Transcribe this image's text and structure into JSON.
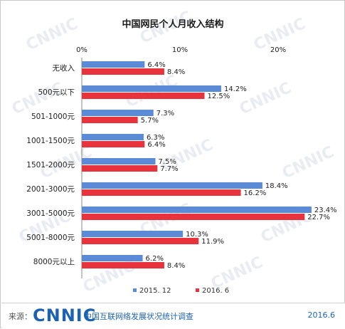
{
  "chart_data": {
    "type": "bar",
    "orientation": "horizontal",
    "title": "中国网民个人月收入结构",
    "categories": [
      "无收入",
      "500元以下",
      "501-1000元",
      "1001-1500元",
      "1501-2000元",
      "2001-3000元",
      "3001-5000元",
      "5001-8000元",
      "8000元以上"
    ],
    "series": [
      {
        "name": "2015. 12",
        "color": "#5b8bd6",
        "values": [
          6.4,
          14.2,
          7.3,
          6.3,
          7.5,
          18.4,
          23.4,
          10.3,
          6.2
        ],
        "labels": [
          "6.4%",
          "14.2%",
          "7.3%",
          "6.3%",
          "7.5%",
          "18.4%",
          "23.4%",
          "10.3%",
          "6.2%"
        ]
      },
      {
        "name": "2016. 6",
        "color": "#e8323c",
        "values": [
          8.4,
          12.5,
          5.7,
          6.4,
          7.7,
          16.2,
          22.7,
          11.9,
          8.4
        ],
        "labels": [
          "8.4%",
          "12.5%",
          "5.7%",
          "6.4%",
          "7.7%",
          "16.2%",
          "22.7%",
          "11.9%",
          "8.4%"
        ]
      }
    ],
    "xlim": [
      0,
      25
    ],
    "xticks": [
      0,
      10,
      20
    ],
    "xtick_labels": [
      "0%",
      "10%",
      "20%"
    ],
    "grid": false,
    "legend_position": "bottom"
  },
  "footer": {
    "source_label": "来源：",
    "logo": "CNNIC",
    "org": "中国互联网络发展状况统计调查",
    "date": "2016.6"
  },
  "watermark": "CNNIC"
}
